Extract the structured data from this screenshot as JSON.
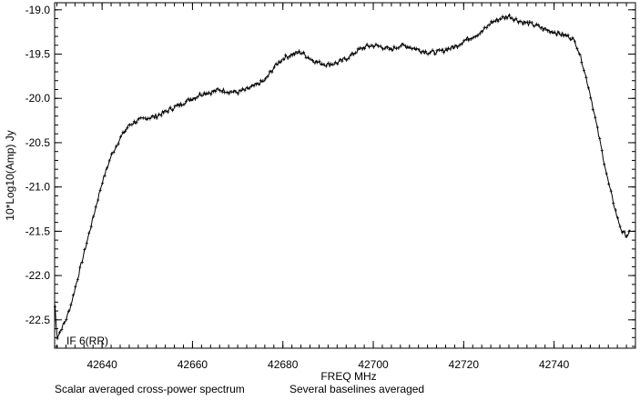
{
  "chart_data": {
    "type": "line",
    "title": "",
    "xlabel": "FREQ  MHz",
    "ylabel": "10*Log10(Amp) Jy",
    "xlim": [
      42629.5,
      42758
    ],
    "ylim": [
      -22.82,
      -18.92
    ],
    "xticks": [
      42640,
      42660,
      42680,
      42700,
      42720,
      42740
    ],
    "xtick_labels": [
      "42640",
      "42660",
      "42680",
      "42700",
      "42720",
      "42740"
    ],
    "yticks": [
      -19.0,
      -19.5,
      -20.0,
      -20.5,
      -21.0,
      -21.5,
      -22.0,
      -22.5
    ],
    "ytick_labels": [
      "-19.0",
      "-19.5",
      "-20.0",
      "-20.5",
      "-21.0",
      "-21.5",
      "-22.0",
      "-22.5"
    ],
    "grid": false,
    "annotation": "IF 6(RR)",
    "series": [
      {
        "x": [
          42629.6,
          42630.0,
          42630.5,
          42631.0,
          42632.0,
          42633.0,
          42634.0,
          42635.0,
          42636.0,
          42637.0,
          42638.0,
          42639.0,
          42640.0,
          42641.0,
          42642.0,
          42644.0,
          42646.0,
          42648.0,
          42650.0,
          42652.0,
          42654.0,
          42656.0,
          42658.0,
          42660.0,
          42662.0,
          42664.0,
          42666.0,
          42668.0,
          42670.0,
          42672.0,
          42674.0,
          42676.0,
          42678.0,
          42680.0,
          42682.0,
          42684.0,
          42686.0,
          42688.0,
          42690.0,
          42692.0,
          42694.0,
          42696.0,
          42698.0,
          42700.0,
          42702.0,
          42704.0,
          42706.0,
          42708.0,
          42710.0,
          42712.0,
          42714.0,
          42716.0,
          42718.0,
          42720.0,
          42722.0,
          42724.0,
          42726.0,
          42728.0,
          42730.0,
          42732.0,
          42734.0,
          42736.0,
          42738.0,
          42740.0,
          42742.0,
          42744.0,
          42745.0,
          42746.0,
          42747.0,
          42748.0,
          42749.0,
          42750.0,
          42751.0,
          42752.0,
          42753.0,
          42754.0,
          42755.0,
          42756.0,
          42757.0
        ],
        "y": [
          -22.35,
          -22.7,
          -22.65,
          -22.6,
          -22.5,
          -22.35,
          -22.15,
          -21.95,
          -21.75,
          -21.55,
          -21.35,
          -21.15,
          -20.95,
          -20.8,
          -20.65,
          -20.45,
          -20.3,
          -20.25,
          -20.22,
          -20.2,
          -20.15,
          -20.1,
          -20.05,
          -20.0,
          -19.95,
          -19.93,
          -19.9,
          -19.92,
          -19.93,
          -19.9,
          -19.85,
          -19.8,
          -19.65,
          -19.55,
          -19.5,
          -19.48,
          -19.55,
          -19.6,
          -19.62,
          -19.6,
          -19.55,
          -19.48,
          -19.42,
          -19.4,
          -19.42,
          -19.45,
          -19.4,
          -19.42,
          -19.45,
          -19.48,
          -19.48,
          -19.45,
          -19.42,
          -19.35,
          -19.3,
          -19.25,
          -19.15,
          -19.1,
          -19.07,
          -19.12,
          -19.15,
          -19.18,
          -19.22,
          -19.25,
          -19.28,
          -19.32,
          -19.4,
          -19.55,
          -19.75,
          -19.95,
          -20.2,
          -20.45,
          -20.7,
          -20.95,
          -21.15,
          -21.35,
          -21.5,
          -21.55,
          -21.5
        ]
      }
    ]
  },
  "caption": {
    "left": "Scalar averaged cross-power spectrum",
    "right": "Several baselines averaged"
  }
}
